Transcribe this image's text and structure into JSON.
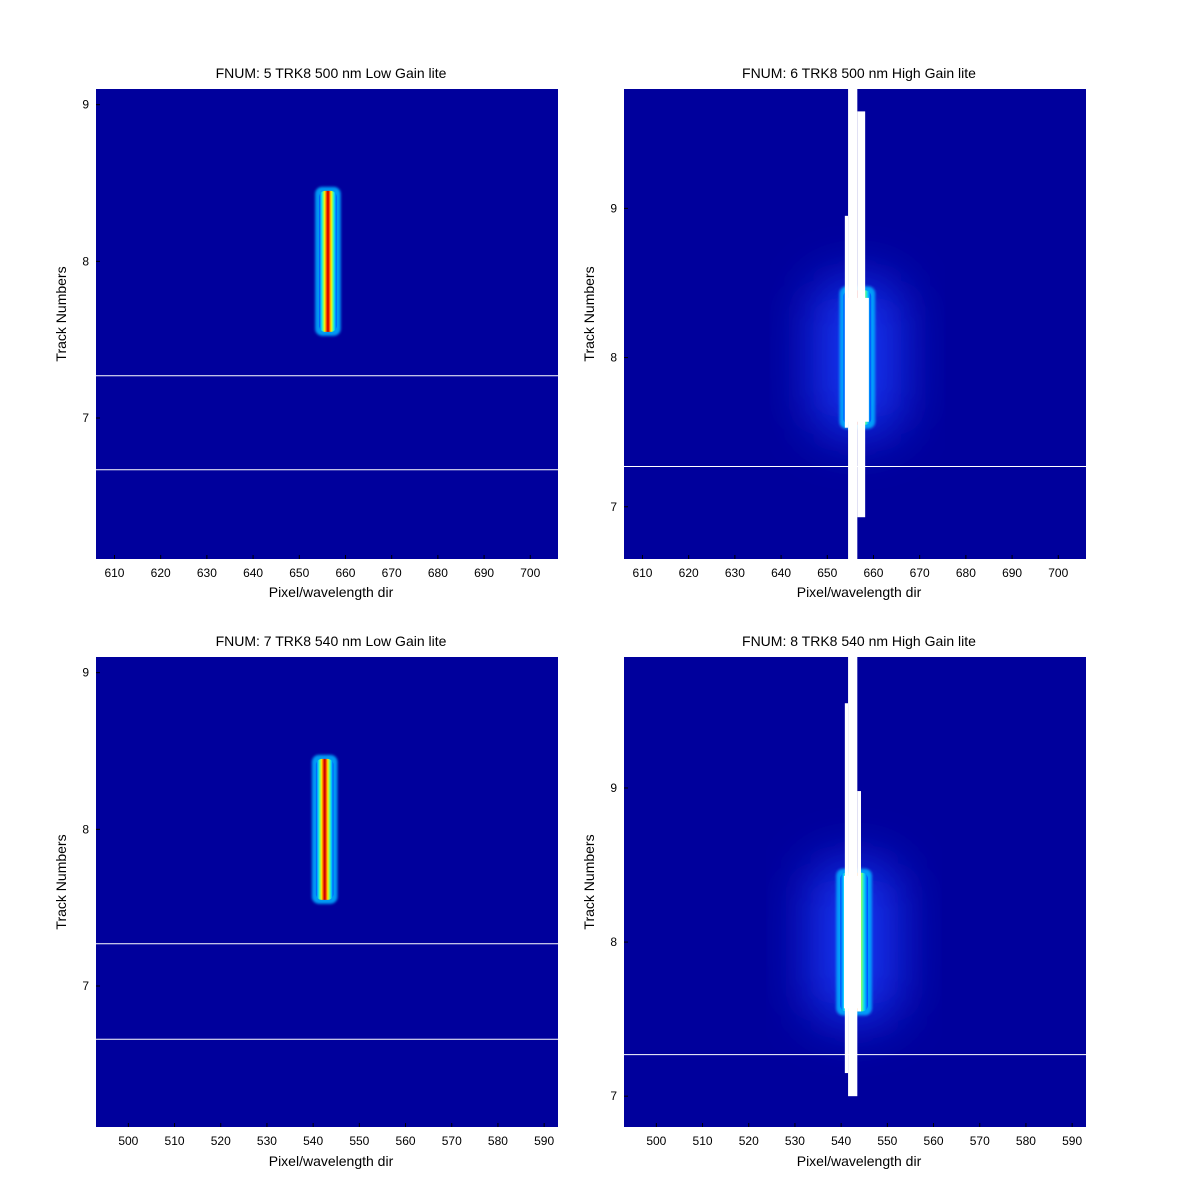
{
  "chart_data": [
    {
      "type": "heatmap",
      "title": "FNUM: 5 TRK8 500 nm Low Gain lite",
      "xlabel": "Pixel/wavelength dir",
      "ylabel": "Track Numbers",
      "xlim": [
        606,
        706
      ],
      "ylim": [
        6.1,
        9.1
      ],
      "xticks": [
        610,
        620,
        630,
        640,
        650,
        660,
        670,
        680,
        690,
        700
      ],
      "yticks": [
        7,
        8,
        9
      ],
      "colormap": "jet",
      "background_color": "#00009c",
      "feature": {
        "x_center": 656.2,
        "x_halfwidth": 1.9,
        "y_low": 7.55,
        "y_high": 8.45,
        "halo": false
      },
      "saturated_regions": [],
      "white_lines_y": [
        7.27,
        6.67
      ]
    },
    {
      "type": "heatmap",
      "title": "FNUM: 6 TRK8 500 nm High Gain lite",
      "xlabel": "Pixel/wavelength dir",
      "ylabel": "Track Numbers",
      "xlim": [
        606,
        706
      ],
      "ylim": [
        6.65,
        9.8
      ],
      "xticks": [
        610,
        620,
        630,
        640,
        650,
        660,
        670,
        680,
        690,
        700
      ],
      "yticks": [
        7,
        8,
        9
      ],
      "colormap": "jet",
      "background_color": "#00009c",
      "feature": {
        "x_center": 656.5,
        "x_halfwidth": 3.0,
        "y_low": 7.55,
        "y_high": 8.45,
        "halo": true
      },
      "saturated_regions": [
        {
          "x0": 654.5,
          "x1": 656.5,
          "y0": 6.65,
          "y1": 9.8
        },
        {
          "x0": 656.5,
          "x1": 658.2,
          "y0": 6.93,
          "y1": 9.65
        },
        {
          "x0": 653.8,
          "x1": 654.5,
          "y0": 7.53,
          "y1": 8.95
        },
        {
          "x0": 654.5,
          "x1": 659.0,
          "y0": 7.57,
          "y1": 8.4
        }
      ],
      "white_lines_y": [
        7.27
      ]
    },
    {
      "type": "heatmap",
      "title": "FNUM: 7 TRK8 540 nm Low Gain lite",
      "xlabel": "Pixel/wavelength dir",
      "ylabel": "Track Numbers",
      "xlim": [
        493,
        593
      ],
      "ylim": [
        6.1,
        9.1
      ],
      "xticks": [
        500,
        510,
        520,
        530,
        540,
        550,
        560,
        570,
        580,
        590
      ],
      "yticks": [
        7,
        8,
        9
      ],
      "colormap": "jet",
      "background_color": "#00009c",
      "feature": {
        "x_center": 542.5,
        "x_halfwidth": 1.9,
        "y_low": 7.55,
        "y_high": 8.45,
        "halo": false
      },
      "saturated_regions": [],
      "white_lines_y": [
        7.27,
        6.66
      ]
    },
    {
      "type": "heatmap",
      "title": "FNUM: 8 TRK8 540 nm High Gain lite",
      "xlabel": "Pixel/wavelength dir",
      "ylabel": "Track Numbers",
      "xlim": [
        493,
        593
      ],
      "ylim": [
        6.8,
        9.85
      ],
      "xticks": [
        500,
        510,
        520,
        530,
        540,
        550,
        560,
        570,
        580,
        590
      ],
      "yticks": [
        7,
        8,
        9
      ],
      "colormap": "jet",
      "background_color": "#00009c",
      "feature": {
        "x_center": 542.8,
        "x_halfwidth": 3.0,
        "y_low": 7.55,
        "y_high": 8.45,
        "halo": true
      },
      "saturated_regions": [
        {
          "x0": 541.5,
          "x1": 543.5,
          "y0": 7.0,
          "y1": 9.85
        },
        {
          "x0": 543.5,
          "x1": 544.3,
          "y0": 7.55,
          "y1": 8.98
        },
        {
          "x0": 540.8,
          "x1": 541.5,
          "y0": 7.15,
          "y1": 9.55
        },
        {
          "x0": 540.6,
          "x1": 543.8,
          "y0": 7.57,
          "y1": 8.43
        }
      ],
      "white_lines_y": [
        7.27
      ]
    }
  ]
}
